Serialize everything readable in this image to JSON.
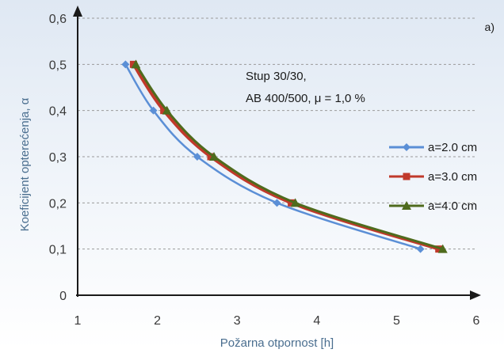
{
  "chart_data": {
    "type": "line",
    "panel_label": "a)",
    "annotation_lines": [
      "Stup 30/30,",
      "AB 400/500, μ = 1,0 %"
    ],
    "xlabel": "Požarna otpornost [h]",
    "ylabel": "Koeficijent opterećenja, α",
    "xlim": [
      1,
      6
    ],
    "ylim": [
      0,
      0.6
    ],
    "x_ticks": [
      1,
      2,
      3,
      4,
      5,
      6
    ],
    "x_tick_labels": [
      "1",
      "2",
      "3",
      "4",
      "5",
      "6"
    ],
    "y_ticks": [
      0,
      0.1,
      0.2,
      0.3,
      0.4,
      0.5,
      0.6
    ],
    "y_tick_labels": [
      "0",
      "0,1",
      "0,2",
      "0,3",
      "0,4",
      "0,5",
      "0,6"
    ],
    "grid": true,
    "legend_position": "right",
    "series": [
      {
        "name": "a=2.0 cm",
        "color": "#5b8fd6",
        "marker": "diamond",
        "points": [
          [
            1.6,
            0.5
          ],
          [
            1.95,
            0.4
          ],
          [
            2.5,
            0.3
          ],
          [
            3.5,
            0.2
          ],
          [
            5.3,
            0.1
          ]
        ]
      },
      {
        "name": "a=3.0 cm",
        "color": "#c0392b",
        "marker": "square",
        "points": [
          [
            1.7,
            0.5
          ],
          [
            2.08,
            0.4
          ],
          [
            2.67,
            0.3
          ],
          [
            3.68,
            0.2
          ],
          [
            5.53,
            0.1
          ]
        ]
      },
      {
        "name": "a=4.0 cm",
        "color": "#4f6b1d",
        "marker": "triangle",
        "points": [
          [
            1.73,
            0.5
          ],
          [
            2.12,
            0.4
          ],
          [
            2.71,
            0.3
          ],
          [
            3.73,
            0.2
          ],
          [
            5.58,
            0.1
          ]
        ]
      }
    ]
  }
}
